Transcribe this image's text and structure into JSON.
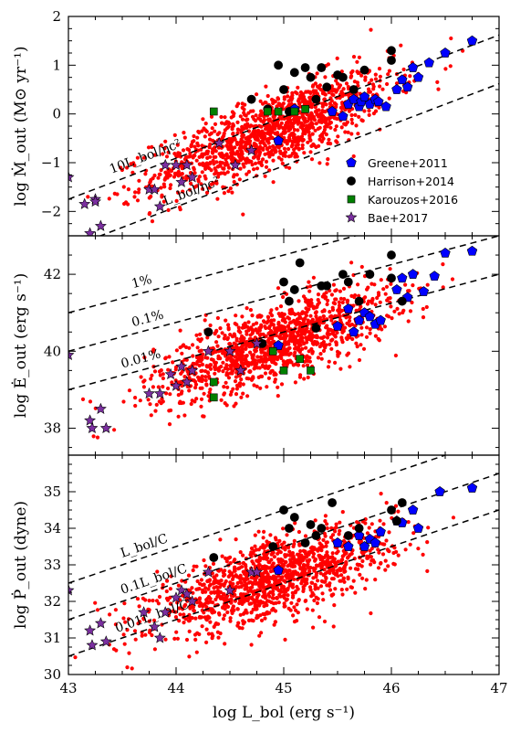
{
  "chart_data": [
    {
      "type": "scatter",
      "panel": "top",
      "ylabel": "log Ṁ_out (M⊙ yr⁻¹)",
      "xlim": [
        43,
        47
      ],
      "ylim": [
        -2.5,
        2
      ],
      "y_ticks": [
        "−2",
        "−1",
        "0",
        "1",
        "2"
      ],
      "reference_lines": [
        {
          "label": "10L_bol/ηc²",
          "x": [
            43,
            47
          ],
          "y": [
            -1.75,
            1.62
          ]
        },
        {
          "label": "L_bol/ηc²",
          "x": [
            43,
            47
          ],
          "y": [
            -2.75,
            0.62
          ]
        }
      ],
      "background_cloud": {
        "color": "#ff0000",
        "description": "simulated sample",
        "center": [
          44.9,
          -0.35
        ],
        "slope": 0.84
      },
      "series": [
        {
          "name": "Greene+2011",
          "marker": "pentagon",
          "color": "#0000ff",
          "x": [
            44.95,
            45.1,
            45.45,
            45.55,
            45.6,
            45.65,
            45.7,
            45.72,
            45.75,
            45.8,
            45.85,
            45.88,
            45.95,
            46.05,
            46.1,
            46.15,
            46.2,
            46.25,
            46.35,
            46.5,
            46.75
          ],
          "y": [
            -0.55,
            0.1,
            0.05,
            -0.05,
            0.2,
            0.3,
            0.15,
            0.25,
            0.35,
            0.2,
            0.3,
            0.25,
            0.15,
            0.5,
            0.7,
            0.55,
            0.95,
            0.75,
            1.05,
            1.25,
            1.5
          ]
        },
        {
          "name": "Harrison+2014",
          "marker": "circle",
          "color": "#000000",
          "x": [
            44.7,
            44.95,
            45.0,
            45.1,
            45.2,
            45.25,
            45.3,
            45.35,
            45.4,
            45.5,
            45.55,
            45.65,
            45.75,
            46.0,
            46.0,
            44.85,
            45.05
          ],
          "y": [
            0.3,
            1.0,
            0.5,
            0.85,
            0.95,
            0.75,
            0.3,
            0.95,
            0.55,
            0.8,
            0.75,
            0.5,
            0.9,
            1.3,
            1.1,
            0.1,
            0.05
          ]
        },
        {
          "name": "Karouzos+2016",
          "marker": "square",
          "color": "#008000",
          "x": [
            44.35,
            44.85,
            44.95,
            45.1,
            45.2
          ],
          "y": [
            0.05,
            0.05,
            0.05,
            0.05,
            0.1
          ]
        },
        {
          "name": "Bae+2017",
          "marker": "star",
          "color": "#7b2fa0",
          "x": [
            43.0,
            43.15,
            43.2,
            43.25,
            43.3,
            43.75,
            43.8,
            43.85,
            43.9,
            44.0,
            44.05,
            44.1,
            44.15,
            44.4,
            44.55,
            44.7,
            43.25
          ],
          "y": [
            -1.3,
            -1.85,
            -2.45,
            -1.75,
            -2.3,
            -1.55,
            -1.55,
            -1.9,
            -1.05,
            -1.05,
            -1.4,
            -1.05,
            -1.3,
            -0.6,
            -1.05,
            -0.75,
            -1.8
          ]
        }
      ]
    },
    {
      "type": "scatter",
      "panel": "middle",
      "ylabel": "log Ė_out (erg s⁻¹)",
      "xlim": [
        43,
        47
      ],
      "ylim": [
        37.3,
        43
      ],
      "y_ticks": [
        "38",
        "40",
        "42"
      ],
      "reference_lines": [
        {
          "label": "1%",
          "x": [
            43,
            47
          ],
          "y": [
            41.0,
            44.0
          ]
        },
        {
          "label": "0.1%",
          "x": [
            43,
            47
          ],
          "y": [
            40.0,
            43.0
          ]
        },
        {
          "label": "0.01%",
          "x": [
            43,
            47
          ],
          "y": [
            39.0,
            42.0
          ]
        }
      ],
      "background_cloud": {
        "color": "#ff0000",
        "description": "simulated sample",
        "center": [
          44.9,
          40.2
        ],
        "slope": 0.95
      },
      "series": [
        {
          "name": "Greene+2011",
          "marker": "pentagon",
          "color": "#0000ff",
          "x": [
            44.95,
            45.5,
            45.6,
            45.65,
            45.7,
            45.75,
            45.8,
            45.85,
            45.9,
            46.05,
            46.1,
            46.15,
            46.2,
            46.3,
            46.4,
            46.5,
            46.75
          ],
          "y": [
            40.15,
            40.65,
            41.1,
            40.5,
            40.8,
            41.0,
            40.9,
            40.7,
            40.8,
            41.6,
            41.9,
            41.4,
            42.0,
            41.55,
            41.95,
            42.55,
            42.6
          ]
        },
        {
          "name": "Harrison+2014",
          "marker": "circle",
          "color": "#000000",
          "x": [
            44.3,
            44.8,
            45.0,
            45.05,
            45.1,
            45.15,
            45.3,
            45.35,
            45.4,
            45.55,
            45.6,
            45.7,
            45.8,
            46.0,
            46.0,
            46.1
          ],
          "y": [
            40.5,
            40.2,
            41.8,
            41.3,
            41.6,
            42.3,
            40.6,
            41.7,
            41.7,
            42.0,
            41.8,
            41.3,
            42.0,
            41.9,
            42.5,
            41.3
          ]
        },
        {
          "name": "Karouzos+2016",
          "marker": "square",
          "color": "#008000",
          "x": [
            44.35,
            44.35,
            44.9,
            45.0,
            45.15,
            45.25
          ],
          "y": [
            38.8,
            39.2,
            40.0,
            39.5,
            39.8,
            39.5
          ]
        },
        {
          "name": "Bae+2017",
          "marker": "star",
          "color": "#7b2fa0",
          "x": [
            43.0,
            43.2,
            43.22,
            43.3,
            43.35,
            43.75,
            43.85,
            43.95,
            44.0,
            44.05,
            44.1,
            44.15,
            44.3,
            44.5,
            44.6,
            44.75
          ],
          "y": [
            39.9,
            38.2,
            38.0,
            38.5,
            38.0,
            38.9,
            38.9,
            39.4,
            39.1,
            39.6,
            39.2,
            39.5,
            40.0,
            40.0,
            39.5,
            40.2
          ]
        }
      ]
    },
    {
      "type": "scatter",
      "panel": "bottom",
      "xlabel": "log L_bol (erg s⁻¹)",
      "ylabel": "log Ṗ_out (dyne)",
      "xlim": [
        43,
        47
      ],
      "ylim": [
        30,
        36
      ],
      "x_ticks": [
        "43",
        "44",
        "45",
        "46",
        "47"
      ],
      "y_ticks": [
        "30",
        "31",
        "32",
        "33",
        "34",
        "35"
      ],
      "reference_lines": [
        {
          "label": "L_bol/C",
          "x": [
            43,
            47
          ],
          "y": [
            32.5,
            36.5
          ]
        },
        {
          "label": "0.1L_bol/C",
          "x": [
            43,
            47
          ],
          "y": [
            31.5,
            35.5
          ]
        },
        {
          "label": "0.01L_bol/C",
          "x": [
            43,
            47
          ],
          "y": [
            30.5,
            34.5
          ]
        }
      ],
      "background_cloud": {
        "color": "#ff0000",
        "description": "simulated sample",
        "center": [
          44.9,
          32.6
        ],
        "slope": 0.9
      },
      "series": [
        {
          "name": "Greene+2011",
          "marker": "pentagon",
          "color": "#0000ff",
          "x": [
            44.95,
            45.5,
            45.6,
            45.7,
            45.75,
            45.8,
            45.85,
            45.9,
            46.05,
            46.1,
            46.2,
            46.25,
            46.45,
            46.75
          ],
          "y": [
            32.85,
            33.6,
            33.5,
            33.8,
            33.5,
            33.7,
            33.6,
            33.9,
            34.2,
            34.15,
            34.5,
            34.0,
            35.0,
            35.1
          ]
        },
        {
          "name": "Harrison+2014",
          "marker": "circle",
          "color": "#000000",
          "x": [
            44.35,
            44.9,
            45.0,
            45.05,
            45.1,
            45.2,
            45.25,
            45.3,
            45.35,
            45.45,
            45.6,
            45.7,
            46.0,
            46.05,
            46.1
          ],
          "y": [
            33.2,
            33.5,
            34.5,
            34.0,
            34.3,
            33.6,
            34.1,
            33.8,
            34.0,
            34.7,
            33.8,
            34.0,
            34.5,
            34.2,
            34.7
          ]
        },
        {
          "name": "Bae+2017",
          "marker": "star",
          "color": "#7b2fa0",
          "x": [
            43.0,
            43.2,
            43.22,
            43.3,
            43.35,
            43.7,
            43.8,
            43.85,
            43.9,
            44.0,
            44.05,
            44.1,
            44.15,
            44.3,
            44.5,
            44.7,
            44.75
          ],
          "y": [
            32.3,
            31.2,
            30.8,
            31.4,
            30.9,
            31.7,
            31.3,
            31.0,
            31.7,
            32.1,
            32.3,
            32.2,
            32.0,
            32.8,
            32.3,
            32.8,
            32.8
          ]
        }
      ]
    }
  ],
  "legend": {
    "location": "lower-right of top panel",
    "entries": [
      "Greene+2011",
      "Harrison+2014",
      "Karouzos+2016",
      "Bae+2017"
    ]
  }
}
